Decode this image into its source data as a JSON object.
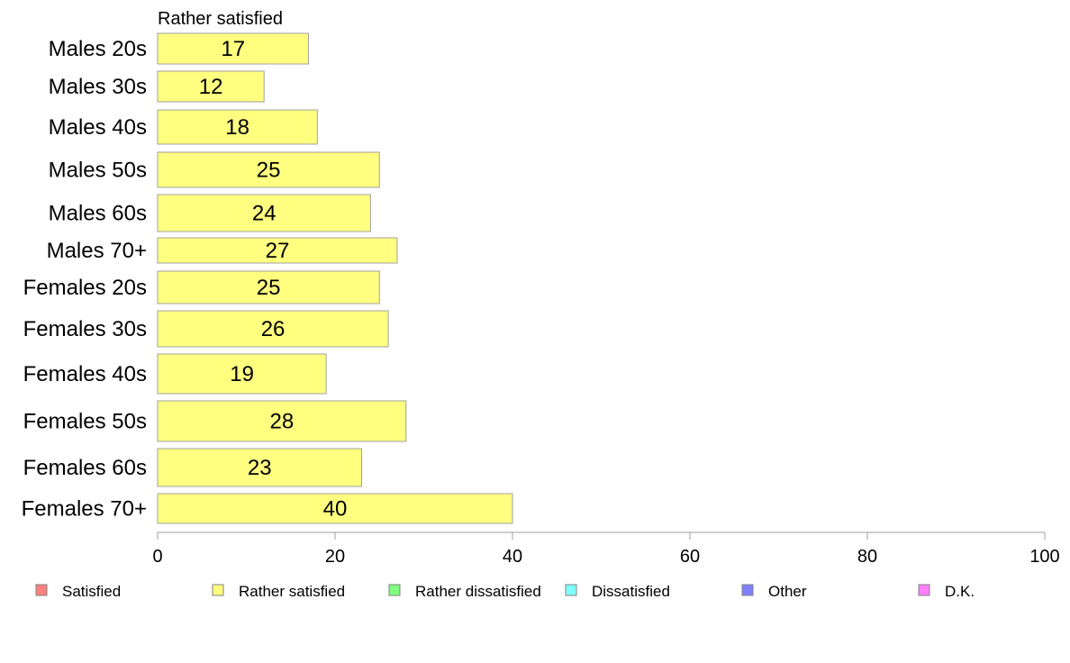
{
  "chart_data": {
    "type": "bar",
    "orientation": "horizontal",
    "title": "",
    "series_title": "Rather satisfied",
    "categories": [
      "Males 20s",
      "Males 30s",
      "Males 40s",
      "Males 50s",
      "Males 60s",
      "Males 70+",
      "Females 20s",
      "Females 30s",
      "Females 40s",
      "Females 50s",
      "Females 60s",
      "Females 70+"
    ],
    "series": [
      {
        "name": "Rather satisfied",
        "color": "#ffff80",
        "values": [
          17,
          12,
          18,
          25,
          24,
          27,
          25,
          26,
          19,
          28,
          23,
          40
        ]
      }
    ],
    "value_labels": [
      "17",
      "12",
      "18",
      "25",
      "24",
      "27",
      "25",
      "26",
      "19",
      "28",
      "23",
      "40"
    ],
    "xlim": [
      0,
      100
    ],
    "xticks": [
      0,
      20,
      40,
      60,
      80,
      100
    ],
    "xtick_labels": [
      "0",
      "20",
      "40",
      "60",
      "80",
      "100"
    ],
    "grid": false,
    "legend": {
      "placement": "bottom",
      "items": [
        {
          "label": "Satisfied",
          "color": "#ff8080"
        },
        {
          "label": "Rather satisfied",
          "color": "#ffff80"
        },
        {
          "label": "Rather dissatisfied",
          "color": "#80ff80"
        },
        {
          "label": "Dissatisfied",
          "color": "#80ffff"
        },
        {
          "label": "Other",
          "color": "#8080ff"
        },
        {
          "label": "D.K.",
          "color": "#ff80ff"
        }
      ]
    }
  }
}
